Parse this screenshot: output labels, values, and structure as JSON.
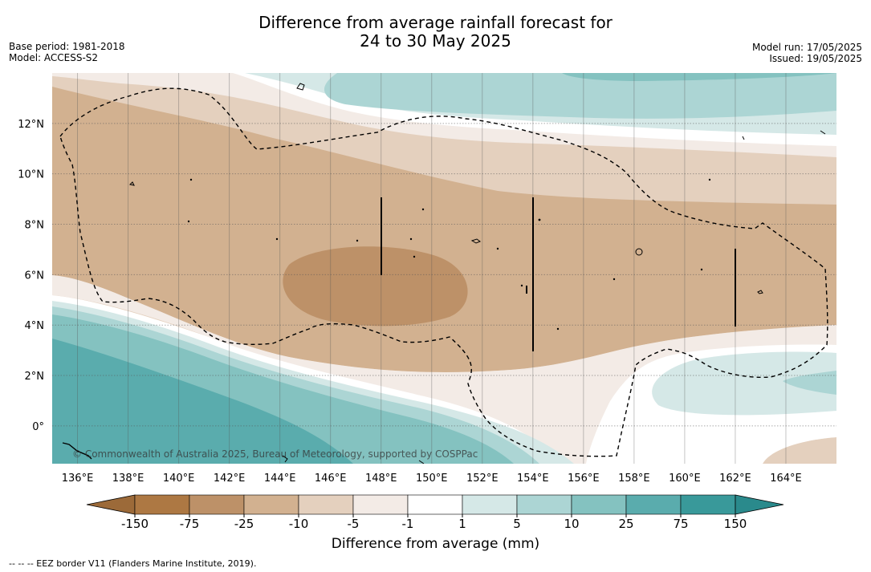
{
  "header": {
    "title_line1": "Difference from average rainfall forecast for",
    "title_line2": "24 to 30 May 2025",
    "base_period": "Base period: 1981-2018",
    "model": "Model: ACCESS-S2",
    "model_run": "Model run: 17/05/2025",
    "issued": "Issued: 19/05/2025"
  },
  "map": {
    "lon_range": [
      135,
      166
    ],
    "lat_range": [
      -1.5,
      14
    ],
    "lon_ticks": [
      "136°E",
      "138°E",
      "140°E",
      "142°E",
      "144°E",
      "146°E",
      "148°E",
      "150°E",
      "152°E",
      "154°E",
      "156°E",
      "158°E",
      "160°E",
      "162°E",
      "164°E"
    ],
    "lat_ticks": [
      "12°N",
      "10°N",
      "8°N",
      "6°N",
      "4°N",
      "2°N",
      "0°"
    ],
    "copyright": "© Commonwealth of Australia 2025, Bureau of Meteorology, supported by COSPPac"
  },
  "colorbar": {
    "title": "Difference from average (mm)",
    "labels": [
      "-150",
      "-75",
      "-25",
      "-10",
      "-5",
      "-1",
      "1",
      "5",
      "10",
      "25",
      "75",
      "150"
    ],
    "colors": [
      "#ad7843",
      "#bd9168",
      "#d2b190",
      "#e4d0be",
      "#f3ebe6",
      "#ffffff",
      "#d5e8e7",
      "#acd5d4",
      "#84c2c0",
      "#5aacad",
      "#39999a"
    ],
    "extend_low_color": "#9c6a39",
    "extend_high_color": "#2a8a8c"
  },
  "footnote": "--  --  -- EEZ border V11 (Flanders Marine Institute, 2019)."
}
